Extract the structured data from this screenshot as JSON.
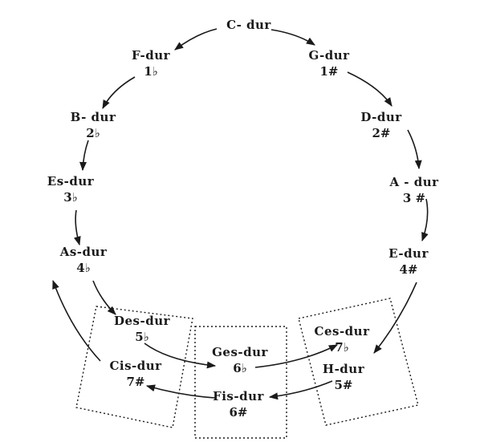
{
  "keys": {
    "c": {
      "name": "C- dur",
      "sig": ""
    },
    "f": {
      "name": "F-dur",
      "sig": "1♭"
    },
    "g": {
      "name": "G-dur",
      "sig": "1#"
    },
    "b": {
      "name": "B- dur",
      "sig": "2♭"
    },
    "d": {
      "name": "D-dur",
      "sig": "2#"
    },
    "es": {
      "name": "Es-dur",
      "sig": "3♭"
    },
    "a": {
      "name": "A - dur",
      "sig": "3 #"
    },
    "as": {
      "name": "As-dur",
      "sig": "4♭"
    },
    "e": {
      "name": "E-dur",
      "sig": "4#"
    },
    "des": {
      "name": "Des-dur",
      "sig": "5♭"
    },
    "cis": {
      "name": "Cis-dur",
      "sig": "7#"
    },
    "ges": {
      "name": "Ges-dur",
      "sig": "6♭"
    },
    "fis": {
      "name": "Fis-dur",
      "sig": "6#"
    },
    "ces": {
      "name": "Ces-dur",
      "sig": "7♭"
    },
    "h": {
      "name": "H-dur",
      "sig": "5#"
    }
  },
  "colors": {
    "ink": "#1a1a1a",
    "background": "#ffffff"
  }
}
